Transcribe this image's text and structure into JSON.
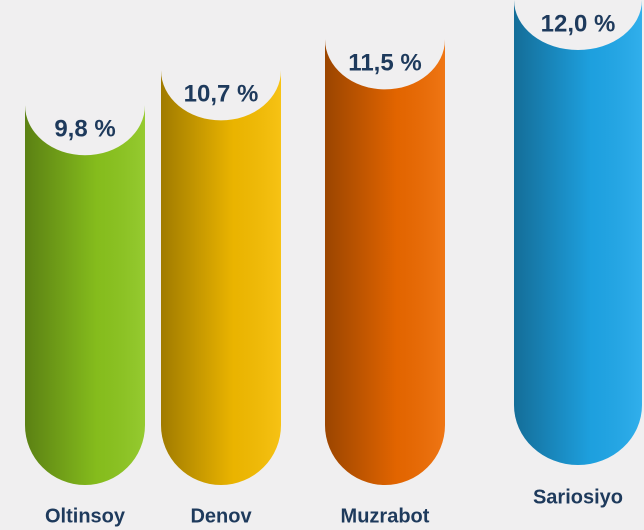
{
  "chart_data": {
    "type": "bar",
    "categories": [
      "Oltinsoy",
      "Denov",
      "Muzrabot",
      "Sariosiyo"
    ],
    "values": [
      9.8,
      10.7,
      11.5,
      12.0
    ],
    "value_labels": [
      "9,8 %",
      "10,7 %",
      "11,5 %",
      "12,0 %"
    ],
    "colors": [
      "#8cc61e",
      "#f6bd00",
      "#ee6a00",
      "#1fa8ea"
    ]
  }
}
